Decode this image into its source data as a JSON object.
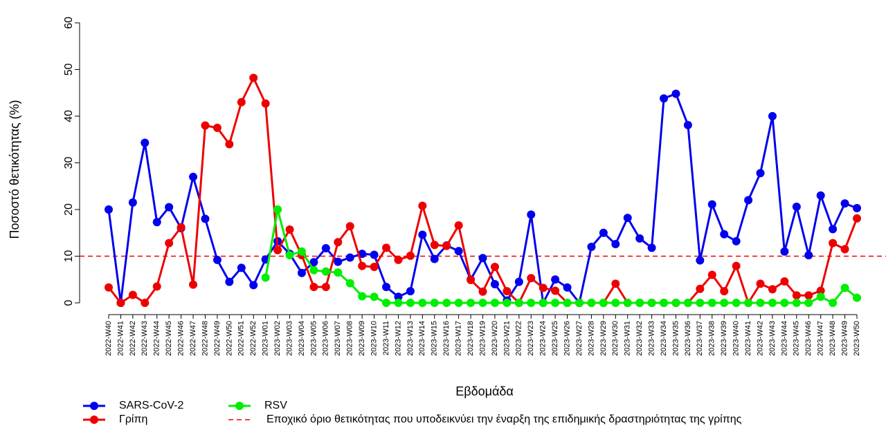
{
  "chart_data": {
    "type": "line",
    "x_label": "Εβδομάδα",
    "y_label": "Ποσοστό θετικότητας (%)",
    "categories": [
      "2022-W40",
      "2022-W41",
      "2022-W42",
      "2022-W43",
      "2022-W44",
      "2022-W45",
      "2022-W46",
      "2022-W47",
      "2022-W48",
      "2022-W49",
      "2022-W50",
      "2022-W51",
      "2022-W52",
      "2023-W01",
      "2023-W02",
      "2023-W03",
      "2023-W04",
      "2023-W05",
      "2023-W06",
      "2023-W07",
      "2023-W08",
      "2023-W09",
      "2023-W10",
      "2023-W11",
      "2023-W12",
      "2023-W13",
      "2023-W14",
      "2023-W15",
      "2023-W16",
      "2023-W17",
      "2023-W18",
      "2023-W19",
      "2023-W20",
      "2023-W21",
      "2023-W22",
      "2023-W23",
      "2023-W24",
      "2023-W25",
      "2023-W26",
      "2023-W27",
      "2023-W28",
      "2023-W29",
      "2023-W30",
      "2023-W31",
      "2023-W32",
      "2023-W33",
      "2023-W34",
      "2023-W35",
      "2023-W36",
      "2023-W37",
      "2023-W38",
      "2023-W39",
      "2023-W40",
      "2023-W41",
      "2023-W42",
      "2023-W43",
      "2023-W44",
      "2023-W45",
      "2023-W46",
      "2023-W47",
      "2023-W48",
      "2023-W49",
      "2023-W50"
    ],
    "series": [
      {
        "name": "SARS-CoV-2",
        "color": "#0000ee",
        "values": [
          20,
          0,
          21.5,
          34.3,
          17.3,
          20.5,
          16,
          27,
          18,
          9.2,
          4.5,
          7.5,
          3.8,
          9.3,
          13.2,
          10.5,
          6.4,
          8.7,
          11.7,
          8.8,
          9.7,
          10.5,
          10.3,
          3.4,
          1.3,
          2.5,
          14.6,
          9.4,
          12.3,
          11.1,
          5,
          9.6,
          4,
          0.5,
          4.5,
          18.9,
          0,
          5,
          3.3,
          0,
          12,
          15,
          12.6,
          18.2,
          13.8,
          11.8,
          43.8,
          44.8,
          38.1,
          9.1,
          21.1,
          14.7,
          13.2,
          22,
          27.8,
          40,
          11,
          20.6,
          10.2,
          23,
          15.8,
          21.3,
          20.3
        ]
      },
      {
        "name": "Γρίπη",
        "color": "#ee0000",
        "values": [
          3.3,
          0,
          1.7,
          0,
          3.5,
          12.8,
          16.2,
          3.9,
          38,
          37.5,
          34,
          43,
          48.2,
          42.7,
          11.3,
          15.7,
          10.2,
          3.4,
          3.4,
          13,
          16.4,
          7.9,
          7.7,
          11.8,
          9.2,
          10.1,
          20.8,
          12.4,
          12.2,
          16.6,
          4.9,
          2.4,
          7.7,
          2.5,
          0,
          5.3,
          3.2,
          2.6,
          0,
          0,
          0,
          0,
          4.1,
          0,
          0,
          0,
          0,
          0,
          0,
          3,
          6,
          2.5,
          7.9,
          0,
          4.1,
          2.9,
          4.6,
          1.6,
          1.6,
          2.6,
          12.8,
          11.5,
          18.1
        ]
      },
      {
        "name": "RSV",
        "color": "#00ee00",
        "values": [
          null,
          null,
          null,
          null,
          null,
          null,
          null,
          null,
          null,
          null,
          null,
          null,
          null,
          5.4,
          20,
          10.2,
          11,
          7,
          6.7,
          6.5,
          4.2,
          1.4,
          1.3,
          0,
          0,
          0,
          0,
          0,
          0,
          0,
          0,
          0,
          0,
          0,
          0,
          0,
          0,
          0,
          0,
          0,
          0,
          0,
          0,
          0,
          0,
          0,
          0,
          0,
          0,
          0,
          0,
          0,
          0,
          0,
          0,
          0,
          0,
          0,
          0,
          1.3,
          0,
          3.2,
          1.1
        ]
      }
    ],
    "threshold": {
      "name": "Εποχικό όριο θετικότητας που υποδεικνύει την έναρξη της επιδημικής δραστηριότητας της γρίπης",
      "value": 10,
      "color": "#ee0000"
    },
    "ylim": [
      0,
      60
    ],
    "yticks": [
      0,
      10,
      20,
      30,
      40,
      50,
      60
    ]
  }
}
